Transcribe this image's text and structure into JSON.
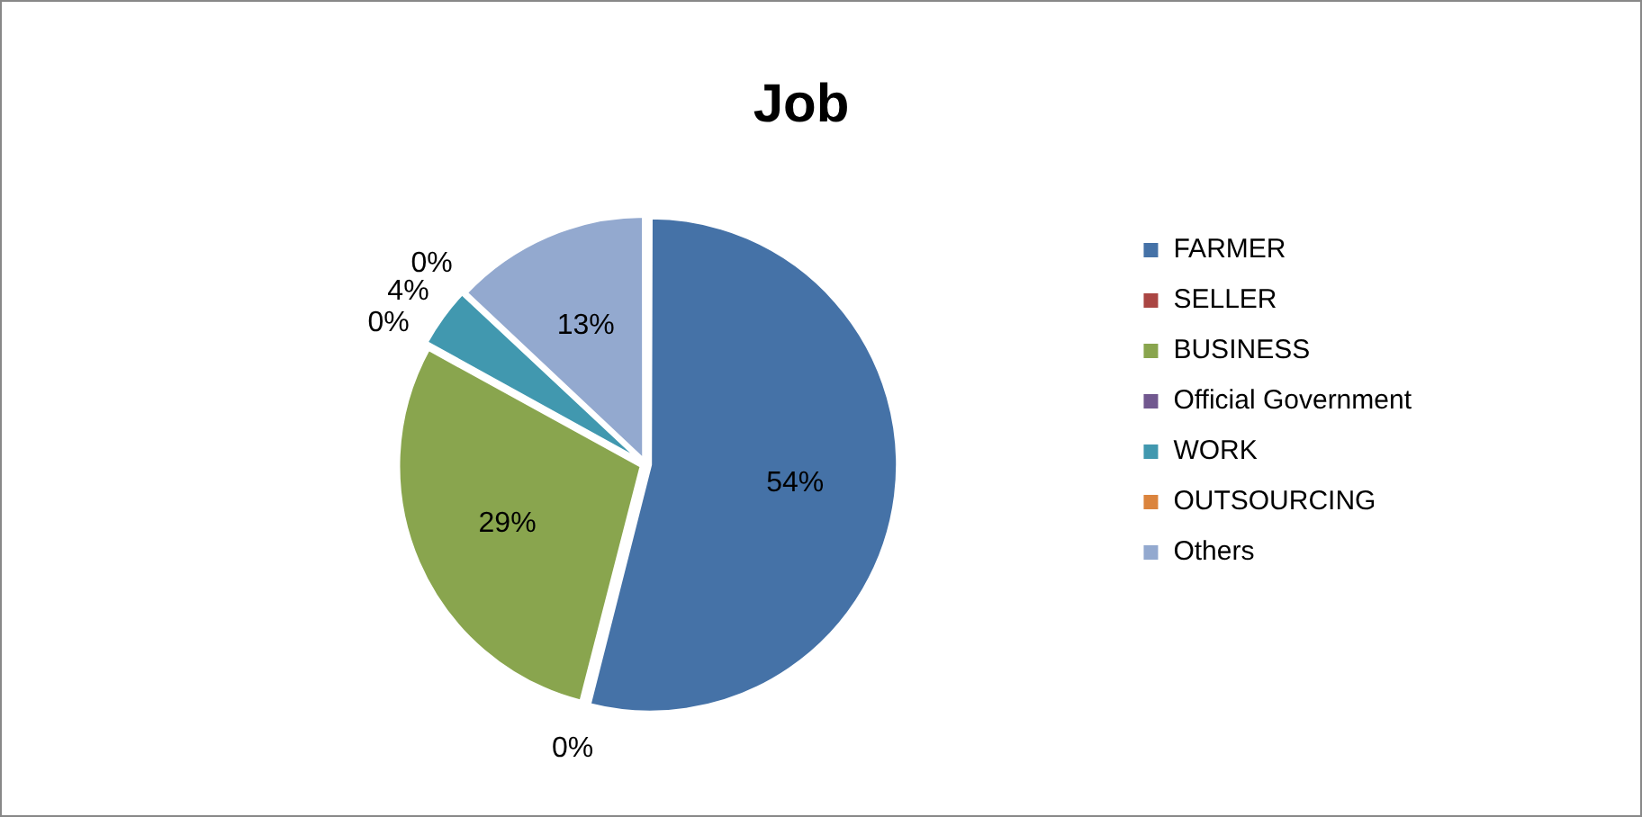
{
  "chart_data": {
    "type": "pie",
    "title": "Job",
    "categories": [
      "FARMER",
      "SELLER",
      "BUSINESS",
      "Official Government",
      "WORK",
      "OUTSOURCING",
      "Others"
    ],
    "values": [
      54,
      0,
      29,
      0,
      4,
      0,
      13
    ],
    "value_labels": [
      "54%",
      "0%",
      "29%",
      "0%",
      "4%",
      "0%",
      "13%"
    ],
    "colors": [
      "#4572a7",
      "#aa4643",
      "#89a54e",
      "#71588f",
      "#4198af",
      "#db843d",
      "#93a9cf"
    ],
    "legend": "right"
  }
}
